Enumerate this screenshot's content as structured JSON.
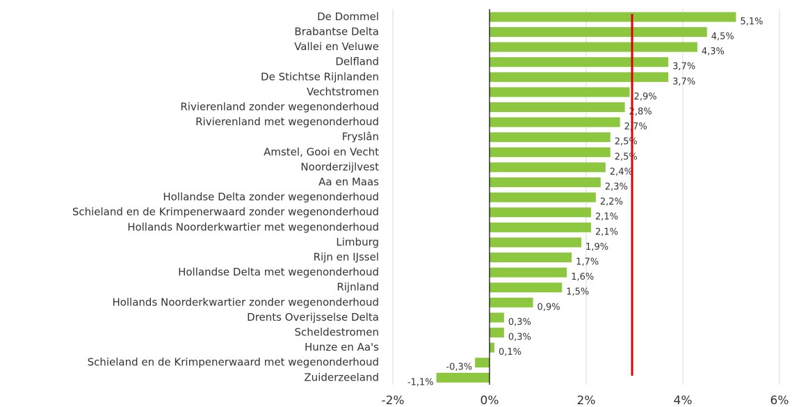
{
  "chart_data": {
    "type": "bar",
    "orientation": "horizontal",
    "categories": [
      "De Dommel",
      "Brabantse Delta",
      "Vallei en Veluwe",
      "Delfland",
      "De Stichtse Rijnlanden",
      "Vechtstromen",
      "Rivierenland zonder wegenonderhoud",
      "Rivierenland met wegenonderhoud",
      "Fryslân",
      "Amstel, Gooi en Vecht",
      "Noorderzijlvest",
      "Aa en Maas",
      "Hollandse Delta zonder wegenonderhoud",
      "Schieland en de Krimpenerwaard zonder wegenonderhoud",
      "Hollands Noorderkwartier met wegenonderhoud",
      "Limburg",
      "Rijn en IJssel",
      "Hollandse Delta met wegenonderhoud",
      "Rijnland",
      "Hollands Noorderkwartier zonder wegenonderhoud",
      "Drents Overijsselse Delta",
      "Scheldestromen",
      "Hunze en Aa's",
      "Schieland en de Krimpenerwaard met wegenonderhoud",
      "Zuiderzeeland"
    ],
    "values": [
      5.1,
      4.5,
      4.3,
      3.7,
      3.7,
      2.9,
      2.8,
      2.7,
      2.5,
      2.5,
      2.4,
      2.3,
      2.2,
      2.1,
      2.1,
      1.9,
      1.7,
      1.6,
      1.5,
      0.9,
      0.3,
      0.3,
      0.1,
      -0.3,
      -1.1
    ],
    "value_labels": [
      "5,1%",
      "4,5%",
      "4,3%",
      "3,7%",
      "3,7%",
      "2,9%",
      "2,8%",
      "2,7%",
      "2,5%",
      "2,5%",
      "2,4%",
      "2,3%",
      "2,2%",
      "2,1%",
      "2,1%",
      "1,9%",
      "1,7%",
      "1,6%",
      "1,5%",
      "0,9%",
      "0,3%",
      "0,3%",
      "0,1%",
      "-0,3%",
      "-1,1%"
    ],
    "color": "#8dc63f",
    "xlim": [
      -2,
      6
    ],
    "xticks": [
      {
        "value": -2,
        "label": "-2%"
      },
      {
        "value": 0,
        "label": "0%"
      },
      {
        "value": 2,
        "label": "2%"
      },
      {
        "value": 4,
        "label": "4%"
      },
      {
        "value": 6,
        "label": "6%"
      }
    ],
    "grid": true,
    "reference_line": {
      "value": 2.95,
      "color": "#e00000"
    }
  }
}
